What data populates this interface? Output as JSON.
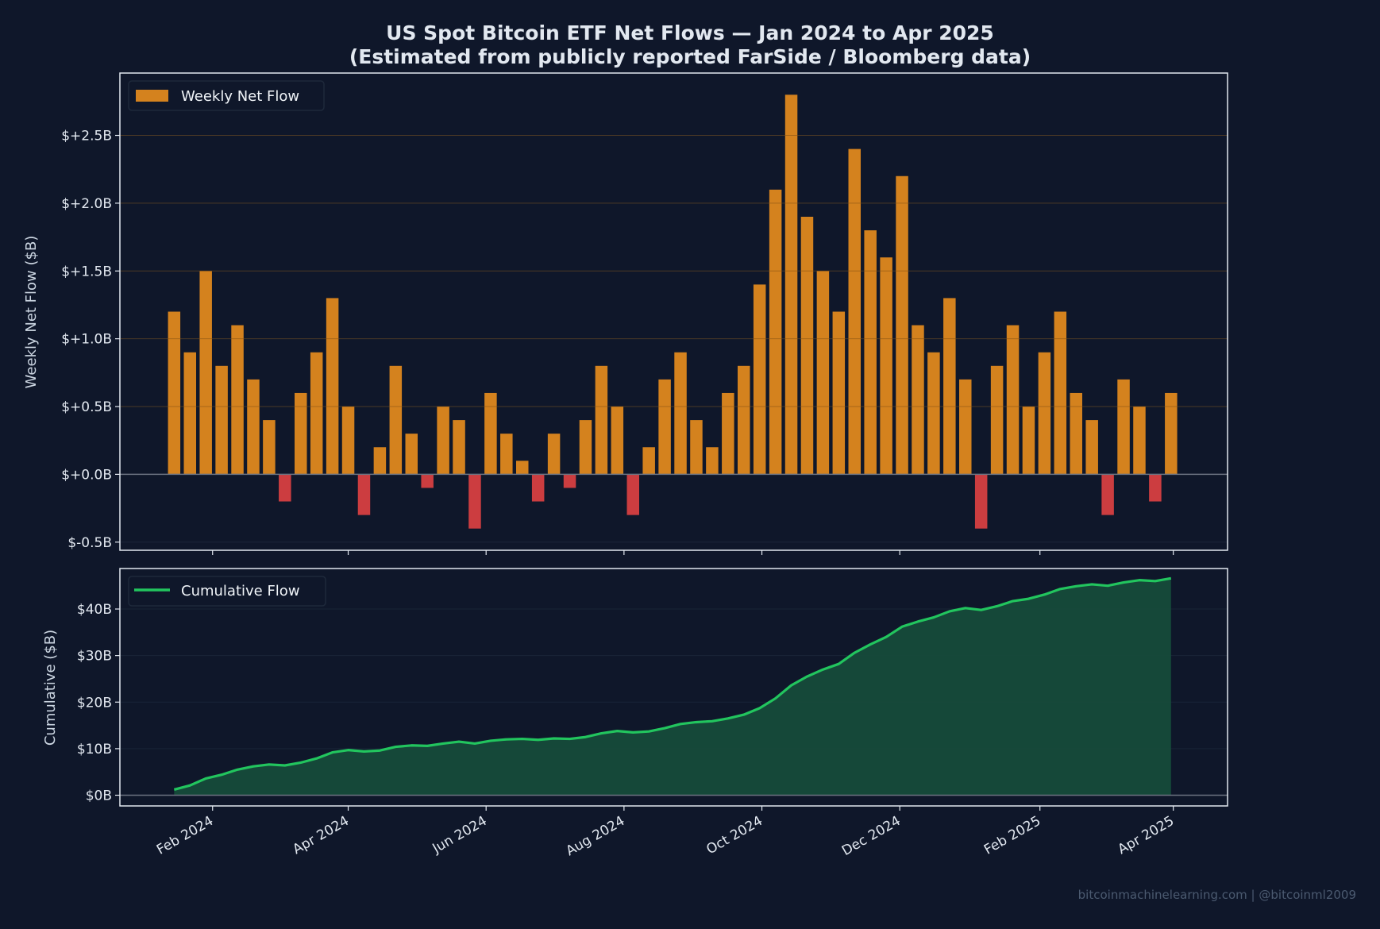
{
  "title_line1": "US Spot Bitcoin ETF Net Flows — Jan 2024 to Apr 2025",
  "title_line2": "(Estimated from publicly reported FarSide / Bloomberg data)",
  "watermark": "bitcoinmachinelearning.com | @bitcoinml2009",
  "colors": {
    "background": "#0f172a",
    "positive": "#d4821e",
    "negative": "#cc3d40",
    "cumulative_line": "#22c55e",
    "cumulative_fill": "#164b3a",
    "text": "#e2e8f0",
    "zero_line": "#6b7280"
  },
  "chart_data": [
    {
      "type": "bar",
      "legend": "Weekly Net Flow",
      "legend_position": "upper-left",
      "ylabel": "Weekly Net Flow ($B)",
      "ylim": [
        -0.56,
        2.96
      ],
      "xlim": [
        "2023-12-22",
        "2025-04-25"
      ],
      "grid": true,
      "yticks": [
        -0.5,
        0,
        0.5,
        1.0,
        1.5,
        2.0,
        2.5
      ],
      "ytick_labels": [
        "$-0.5B",
        "$+0.0B",
        "$+0.5B",
        "$+1.0B",
        "$+1.5B",
        "$+2.0B",
        "$+2.5B"
      ],
      "x": [
        "2024-01-15",
        "2024-01-22",
        "2024-01-29",
        "2024-02-05",
        "2024-02-12",
        "2024-02-19",
        "2024-02-26",
        "2024-03-04",
        "2024-03-11",
        "2024-03-18",
        "2024-03-25",
        "2024-04-01",
        "2024-04-08",
        "2024-04-15",
        "2024-04-22",
        "2024-04-29",
        "2024-05-06",
        "2024-05-13",
        "2024-05-20",
        "2024-05-27",
        "2024-06-03",
        "2024-06-10",
        "2024-06-17",
        "2024-06-24",
        "2024-07-01",
        "2024-07-08",
        "2024-07-15",
        "2024-07-22",
        "2024-07-29",
        "2024-08-05",
        "2024-08-12",
        "2024-08-19",
        "2024-08-26",
        "2024-09-02",
        "2024-09-09",
        "2024-09-16",
        "2024-09-23",
        "2024-09-30",
        "2024-10-07",
        "2024-10-14",
        "2024-10-21",
        "2024-10-28",
        "2024-11-04",
        "2024-11-11",
        "2024-11-18",
        "2024-11-25",
        "2024-12-02",
        "2024-12-09",
        "2024-12-16",
        "2024-12-23",
        "2024-12-30",
        "2025-01-06",
        "2025-01-13",
        "2025-01-20",
        "2025-01-27",
        "2025-02-03",
        "2025-02-10",
        "2025-02-17",
        "2025-02-24",
        "2025-03-03",
        "2025-03-10",
        "2025-03-17",
        "2025-03-24",
        "2025-03-31"
      ],
      "values": [
        1.2,
        0.9,
        1.5,
        0.8,
        1.1,
        0.7,
        0.4,
        -0.2,
        0.6,
        0.9,
        1.3,
        0.5,
        -0.3,
        0.2,
        0.8,
        0.3,
        -0.1,
        0.5,
        0.4,
        -0.4,
        0.6,
        0.3,
        0.1,
        -0.2,
        0.3,
        -0.1,
        0.4,
        0.8,
        0.5,
        -0.3,
        0.2,
        0.7,
        0.9,
        0.4,
        0.2,
        0.6,
        0.8,
        1.4,
        2.1,
        2.8,
        1.9,
        1.5,
        1.2,
        2.4,
        1.8,
        1.6,
        2.2,
        1.1,
        0.9,
        1.3,
        0.7,
        -0.4,
        0.8,
        1.1,
        0.5,
        0.9,
        1.2,
        0.6,
        0.4,
        -0.3,
        0.7,
        0.5,
        -0.2,
        0.6
      ]
    },
    {
      "type": "area",
      "legend": "Cumulative Flow",
      "legend_position": "upper-left",
      "ylabel": "Cumulative ($B)",
      "ylim": [
        -2.3,
        48.7
      ],
      "yticks": [
        0,
        10,
        20,
        30,
        40
      ],
      "ytick_labels": [
        "$0B",
        "$10B",
        "$20B",
        "$30B",
        "$40B"
      ],
      "xticks": [
        "2024-02-01",
        "2024-04-01",
        "2024-06-01",
        "2024-08-01",
        "2024-10-01",
        "2024-12-01",
        "2025-02-01",
        "2025-04-01"
      ],
      "xtick_labels": [
        "Feb 2024",
        "Apr 2024",
        "Jun 2024",
        "Aug 2024",
        "Oct 2024",
        "Dec 2024",
        "Feb 2025",
        "Apr 2025"
      ],
      "values_note_source": "cumulative sum of weekly net flow",
      "values": [
        1.2,
        2.1,
        3.6,
        4.4,
        5.5,
        6.2,
        6.6,
        6.4,
        7.0,
        7.9,
        9.2,
        9.7,
        9.4,
        9.6,
        10.4,
        10.7,
        10.6,
        11.1,
        11.5,
        11.1,
        11.7,
        12.0,
        12.1,
        11.9,
        12.2,
        12.1,
        12.5,
        13.3,
        13.8,
        13.5,
        13.7,
        14.4,
        15.3,
        15.7,
        15.9,
        16.5,
        17.3,
        18.7,
        20.8,
        23.6,
        25.5,
        27.0,
        28.2,
        30.6,
        32.4,
        34.0,
        36.2,
        37.3,
        38.2,
        39.5,
        40.2,
        39.8,
        40.6,
        41.7,
        42.2,
        43.1,
        44.3,
        44.9,
        45.3,
        45.0,
        45.7,
        46.2,
        46.0,
        46.6
      ]
    }
  ]
}
